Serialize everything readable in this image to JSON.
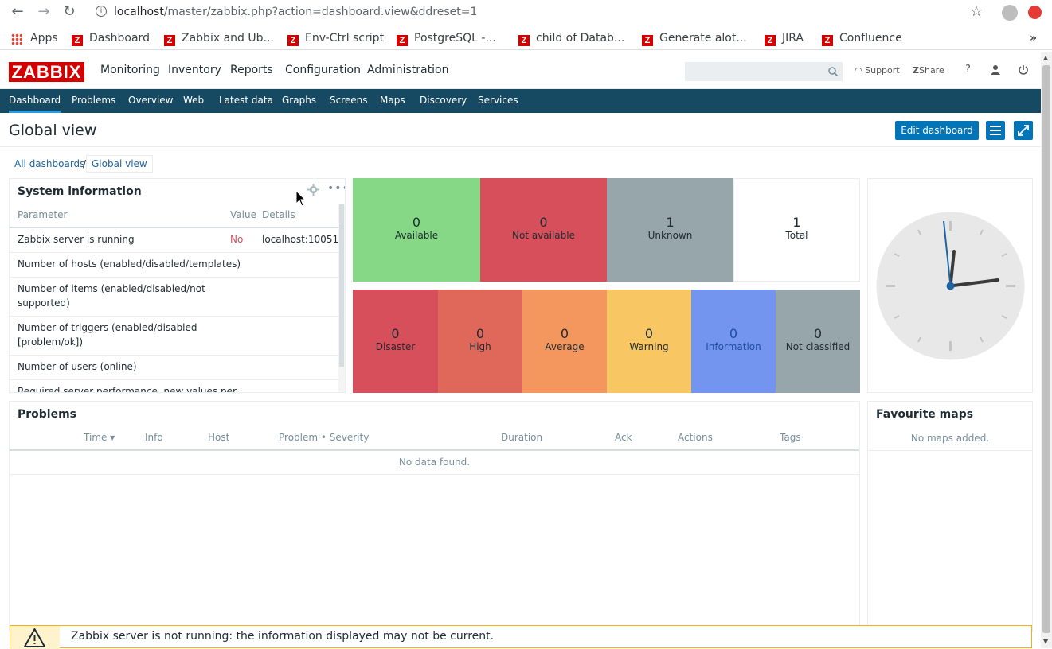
{
  "browser": {
    "url_host": "localhost",
    "url_rest": "/master/zabbix.php?action=dashboard.view&ddreset=1",
    "bookmarks": [
      "Apps",
      "Dashboard",
      "Zabbix and Ub...",
      "Env-Ctrl script",
      "PostgreSQL -...",
      "child of Datab...",
      "Generate alot...",
      "JIRA",
      "Confluence"
    ],
    "overflow": "»"
  },
  "header": {
    "logo": "ZABBIX",
    "menu": [
      "Monitoring",
      "Inventory",
      "Reports",
      "Configuration",
      "Administration"
    ],
    "support": "Support",
    "share": "Share",
    "help": "?"
  },
  "subnav": [
    "Dashboard",
    "Problems",
    "Overview",
    "Web",
    "Latest data",
    "Graphs",
    "Screens",
    "Maps",
    "Discovery",
    "Services"
  ],
  "page": {
    "title": "Global view",
    "edit_button": "Edit dashboard",
    "breadcrumb_all": "All dashboards",
    "breadcrumb_sep": "/",
    "breadcrumb_current": "Global view"
  },
  "system_info": {
    "title": "System information",
    "headers": [
      "Parameter",
      "Value",
      "Details"
    ],
    "rows": [
      {
        "param": "Zabbix server is running",
        "value": "No",
        "details": "localhost:10051"
      },
      {
        "param": "Number of hosts (enabled/disabled/templates)",
        "value": "",
        "details": ""
      },
      {
        "param": "Number of items (enabled/disabled/not supported)",
        "value": "",
        "details": ""
      },
      {
        "param": "Number of triggers (enabled/disabled [problem/ok])",
        "value": "",
        "details": ""
      },
      {
        "param": "Number of users (online)",
        "value": "",
        "details": ""
      },
      {
        "param": "Required server performance, new values per",
        "value": "",
        "details": ""
      }
    ]
  },
  "host_availability": [
    {
      "count": "0",
      "label": "Available",
      "color": "#86d886"
    },
    {
      "count": "0",
      "label": "Not available",
      "color": "#d64f5b"
    },
    {
      "count": "1",
      "label": "Unknown",
      "color": "#97a6aa"
    },
    {
      "count": "1",
      "label": "Total",
      "color": "#ffffff"
    }
  ],
  "severity": [
    {
      "count": "0",
      "label": "Disaster",
      "color": "#d64f5b"
    },
    {
      "count": "0",
      "label": "High",
      "color": "#e0685b"
    },
    {
      "count": "0",
      "label": "Average",
      "color": "#f4975e"
    },
    {
      "count": "0",
      "label": "Warning",
      "color": "#f8c663"
    },
    {
      "count": "0",
      "label": "Information",
      "color": "#7395f0"
    },
    {
      "count": "0",
      "label": "Not classified",
      "color": "#97a6aa"
    }
  ],
  "problems": {
    "title": "Problems",
    "headers": [
      "Time ▾",
      "Info",
      "Host",
      "Problem • Severity",
      "Duration",
      "Ack",
      "Actions",
      "Tags"
    ],
    "empty": "No data found."
  },
  "fav_maps": {
    "title": "Favourite maps",
    "empty": "No maps added."
  },
  "warning": {
    "text": "Zabbix server is not running: the information displayed may not be current."
  }
}
